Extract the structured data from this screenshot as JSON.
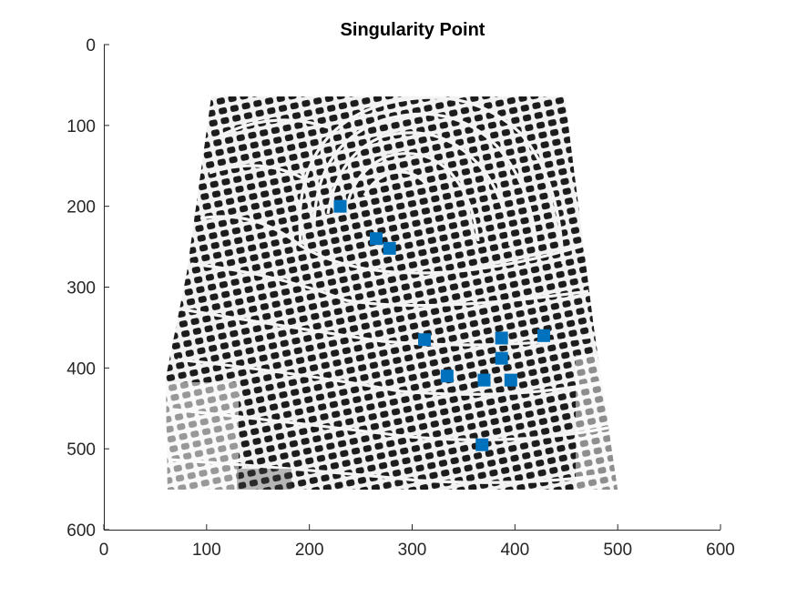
{
  "chart_data": {
    "type": "scatter",
    "title": "Singularity Point",
    "xlabel": "",
    "ylabel": "",
    "xlim": [
      0,
      600
    ],
    "ylim": [
      600,
      0
    ],
    "y_axis_direction": "reversed",
    "xticks": [
      "0",
      "100",
      "200",
      "300",
      "400",
      "500",
      "600"
    ],
    "yticks": [
      "0",
      "100",
      "200",
      "300",
      "400",
      "500",
      "600"
    ],
    "xtick_values": [
      0,
      100,
      200,
      300,
      400,
      500,
      600
    ],
    "ytick_values": [
      0,
      100,
      200,
      300,
      400,
      500,
      600
    ],
    "grid": false,
    "legend": "none",
    "background_image": "fingerprint-grayscale",
    "image_extent": {
      "x": [
        60,
        500
      ],
      "y": [
        65,
        550
      ]
    },
    "marker_color": "#0072BD",
    "marker_shape": "filled-square",
    "points": [
      {
        "x": 230,
        "y": 200
      },
      {
        "x": 265,
        "y": 240
      },
      {
        "x": 278,
        "y": 252
      },
      {
        "x": 312,
        "y": 365
      },
      {
        "x": 334,
        "y": 410
      },
      {
        "x": 370,
        "y": 415
      },
      {
        "x": 396,
        "y": 415
      },
      {
        "x": 387,
        "y": 363
      },
      {
        "x": 387,
        "y": 388
      },
      {
        "x": 428,
        "y": 360
      },
      {
        "x": 368,
        "y": 495
      }
    ]
  }
}
